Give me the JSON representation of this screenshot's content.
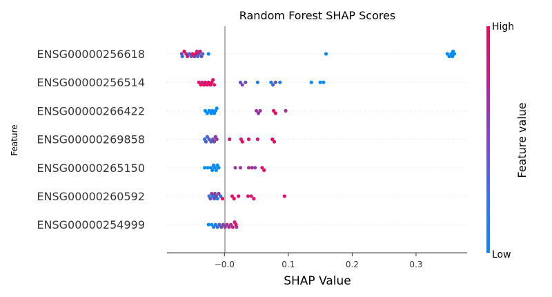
{
  "chart_data": {
    "type": "scatter",
    "title": "Random Forest SHAP Scores",
    "xlabel": "SHAP Value",
    "ylabel": "Feature",
    "xlim": [
      -0.09,
      0.38
    ],
    "xticks": [
      -0.0,
      0.1,
      0.2,
      0.3
    ],
    "xtick_labels": [
      "−0.0",
      "0.1",
      "0.2",
      "0.3"
    ],
    "categories": [
      "ENSG00000256618",
      "ENSG00000256514",
      "ENSG00000266422",
      "ENSG00000269858",
      "ENSG00000265150",
      "ENSG00000260592",
      "ENSG00000254999"
    ],
    "colorbar": {
      "label": "Feature value",
      "high_label": "High",
      "low_label": "Low",
      "low_color": "#008bfb",
      "high_color": "#ff0052"
    },
    "zero_line": true,
    "series": [
      {
        "feature": "ENSG00000256618",
        "points": [
          [
            -0.067,
            0.5
          ],
          [
            -0.066,
            0.2
          ],
          [
            -0.063,
            0.9
          ],
          [
            -0.06,
            0.7
          ],
          [
            -0.058,
            0.8
          ],
          [
            -0.055,
            0.3
          ],
          [
            -0.052,
            0.4
          ],
          [
            -0.05,
            0.9
          ],
          [
            -0.047,
            0.6
          ],
          [
            -0.045,
            0.9
          ],
          [
            -0.043,
            0.7
          ],
          [
            -0.042,
            0.2
          ],
          [
            -0.04,
            0.5
          ],
          [
            -0.038,
            0.8
          ],
          [
            -0.036,
            0.4
          ],
          [
            -0.034,
            0.3
          ],
          [
            -0.025,
            0.0
          ],
          [
            0.159,
            0.0
          ],
          [
            0.349,
            0.0
          ],
          [
            0.352,
            0.0
          ],
          [
            0.355,
            0.0
          ],
          [
            0.357,
            0.0
          ],
          [
            0.358,
            0.0
          ],
          [
            0.36,
            0.0
          ]
        ]
      },
      {
        "feature": "ENSG00000256514",
        "points": [
          [
            -0.04,
            0.9
          ],
          [
            -0.037,
            0.95
          ],
          [
            -0.035,
            0.7
          ],
          [
            -0.032,
            0.9
          ],
          [
            -0.03,
            0.85
          ],
          [
            -0.027,
            0.9
          ],
          [
            -0.025,
            0.8
          ],
          [
            -0.022,
            0.9
          ],
          [
            -0.02,
            0.95
          ],
          [
            -0.018,
            0.9
          ],
          [
            -0.016,
            0.9
          ],
          [
            0.025,
            0.4
          ],
          [
            0.028,
            0.5
          ],
          [
            0.033,
            0.4
          ],
          [
            0.052,
            0.1
          ],
          [
            0.073,
            0.1
          ],
          [
            0.076,
            0.3
          ],
          [
            0.08,
            0.4
          ],
          [
            0.087,
            0.1
          ],
          [
            0.136,
            0.0
          ],
          [
            0.15,
            0.0
          ],
          [
            0.155,
            0.0
          ]
        ]
      },
      {
        "feature": "ENSG00000266422",
        "points": [
          [
            -0.03,
            0.0
          ],
          [
            -0.027,
            0.0
          ],
          [
            -0.024,
            0.0
          ],
          [
            -0.021,
            0.0
          ],
          [
            -0.019,
            0.0
          ],
          [
            -0.016,
            0.0
          ],
          [
            -0.014,
            0.0
          ],
          [
            -0.012,
            0.0
          ],
          [
            0.05,
            0.6
          ],
          [
            0.053,
            0.55
          ],
          [
            0.056,
            0.6
          ],
          [
            0.077,
            0.9
          ],
          [
            0.08,
            0.9
          ],
          [
            0.096,
            0.65
          ]
        ]
      },
      {
        "feature": "ENSG00000269858",
        "points": [
          [
            -0.031,
            0.2
          ],
          [
            -0.029,
            0.3
          ],
          [
            -0.027,
            0.25
          ],
          [
            -0.024,
            0.35
          ],
          [
            -0.021,
            0.3
          ],
          [
            -0.018,
            0.4
          ],
          [
            -0.016,
            0.5
          ],
          [
            -0.014,
            0.55
          ],
          [
            -0.012,
            0.6
          ],
          [
            0.008,
            0.8
          ],
          [
            0.026,
            0.85
          ],
          [
            0.028,
            0.9
          ],
          [
            0.038,
            0.9
          ],
          [
            0.052,
            0.8
          ],
          [
            0.075,
            0.9
          ],
          [
            0.078,
            0.9
          ]
        ]
      },
      {
        "feature": "ENSG00000265150",
        "points": [
          [
            -0.031,
            0.0
          ],
          [
            -0.026,
            0.0
          ],
          [
            -0.021,
            0.0
          ],
          [
            -0.019,
            0.0
          ],
          [
            -0.017,
            0.0
          ],
          [
            -0.015,
            0.0
          ],
          [
            -0.013,
            0.0
          ],
          [
            -0.011,
            0.0
          ],
          [
            -0.009,
            0.0
          ],
          [
            0.017,
            0.6
          ],
          [
            0.025,
            0.6
          ],
          [
            0.038,
            0.6
          ],
          [
            0.043,
            0.7
          ],
          [
            0.048,
            0.5
          ],
          [
            0.059,
            0.9
          ],
          [
            0.062,
            0.9
          ]
        ]
      },
      {
        "feature": "ENSG00000260592",
        "points": [
          [
            -0.024,
            0.2
          ],
          [
            -0.022,
            0.4
          ],
          [
            -0.02,
            0.6
          ],
          [
            -0.018,
            0.1
          ],
          [
            -0.016,
            0.4
          ],
          [
            -0.015,
            0.5
          ],
          [
            -0.013,
            0.5
          ],
          [
            -0.011,
            0.1
          ],
          [
            -0.009,
            0.6
          ],
          [
            -0.006,
            0.1
          ],
          [
            -0.003,
            0.9
          ],
          [
            0.012,
            0.85
          ],
          [
            0.015,
            0.9
          ],
          [
            0.022,
            0.9
          ],
          [
            0.037,
            0.85
          ],
          [
            0.042,
            0.8
          ],
          [
            0.046,
            0.9
          ],
          [
            0.094,
            0.9
          ]
        ]
      },
      {
        "feature": "ENSG00000254999",
        "points": [
          [
            0.018,
            0.95
          ],
          [
            0.019,
            0.6
          ],
          [
            -0.025,
            0.0
          ],
          [
            -0.02,
            0.0
          ],
          [
            -0.017,
            0.1
          ],
          [
            -0.014,
            0.1
          ],
          [
            -0.011,
            0.2
          ],
          [
            -0.008,
            0.3
          ],
          [
            -0.005,
            0.4
          ],
          [
            -0.002,
            0.5
          ],
          [
            0.001,
            0.55
          ],
          [
            0.004,
            0.6
          ],
          [
            0.007,
            0.65
          ],
          [
            0.01,
            0.7
          ],
          [
            0.013,
            0.75
          ],
          [
            0.016,
            0.8
          ]
        ]
      }
    ]
  }
}
